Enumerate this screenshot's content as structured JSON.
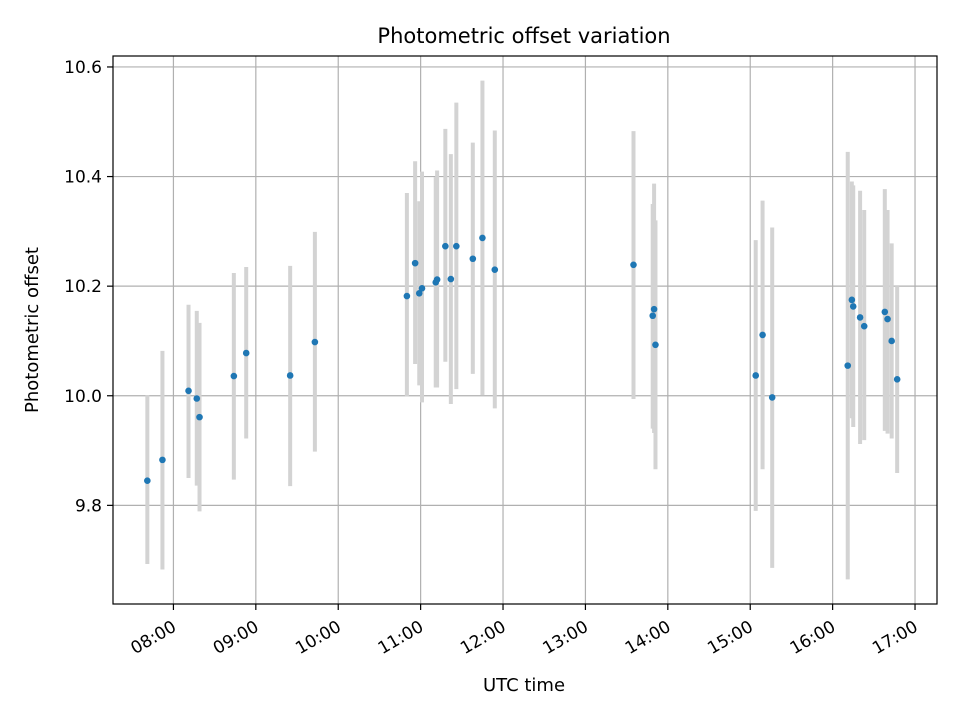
{
  "chart_data": {
    "type": "scatter",
    "title": "Photometric offset variation",
    "xlabel": "UTC time",
    "ylabel": "Photometric offset",
    "x_format": "HH:MM",
    "xlim": [
      "07:16",
      "17:16"
    ],
    "ylim": [
      9.62,
      10.62
    ],
    "x_ticks": [
      "08:00",
      "09:00",
      "10:00",
      "11:00",
      "12:00",
      "13:00",
      "14:00",
      "15:00",
      "16:00",
      "17:00"
    ],
    "y_ticks": [
      9.8,
      10.0,
      10.2,
      10.4,
      10.6
    ],
    "y_tick_labels": [
      "9.8",
      "10.0",
      "10.2",
      "10.4",
      "10.6"
    ],
    "grid": true,
    "legend": false,
    "x_tick_rotation": 30,
    "colors": {
      "point": "#1f77b4",
      "errorbar": "#d3d3d3",
      "grid": "#b0b0b0"
    },
    "series": [
      {
        "points": [
          {
            "x": "07:41",
            "y": 9.845,
            "ylow": 9.693,
            "yhigh": 10.001
          },
          {
            "x": "07:52",
            "y": 9.883,
            "ylow": 9.683,
            "yhigh": 10.082
          },
          {
            "x": "08:11",
            "y": 10.009,
            "ylow": 9.85,
            "yhigh": 10.166
          },
          {
            "x": "08:17",
            "y": 9.995,
            "ylow": 9.836,
            "yhigh": 10.155
          },
          {
            "x": "08:19",
            "y": 9.961,
            "ylow": 9.789,
            "yhigh": 10.133
          },
          {
            "x": "08:44",
            "y": 10.036,
            "ylow": 9.847,
            "yhigh": 10.224
          },
          {
            "x": "08:53",
            "y": 10.078,
            "ylow": 9.922,
            "yhigh": 10.235
          },
          {
            "x": "09:25",
            "y": 10.037,
            "ylow": 9.835,
            "yhigh": 10.237
          },
          {
            "x": "09:43",
            "y": 10.098,
            "ylow": 9.898,
            "yhigh": 10.299
          },
          {
            "x": "10:50",
            "y": 10.182,
            "ylow": 9.999,
            "yhigh": 10.37
          },
          {
            "x": "10:56",
            "y": 10.242,
            "ylow": 10.058,
            "yhigh": 10.428
          },
          {
            "x": "10:59",
            "y": 10.187,
            "ylow": 10.019,
            "yhigh": 10.355
          },
          {
            "x": "11:01",
            "y": 10.196,
            "ylow": 9.988,
            "yhigh": 10.409
          },
          {
            "x": "11:11",
            "y": 10.207,
            "ylow": 10.015,
            "yhigh": 10.399
          },
          {
            "x": "11:12",
            "y": 10.212,
            "ylow": 10.015,
            "yhigh": 10.411
          },
          {
            "x": "11:18",
            "y": 10.273,
            "ylow": 10.062,
            "yhigh": 10.487
          },
          {
            "x": "11:22",
            "y": 10.213,
            "ylow": 9.985,
            "yhigh": 10.441
          },
          {
            "x": "11:26",
            "y": 10.273,
            "ylow": 10.012,
            "yhigh": 10.535
          },
          {
            "x": "11:38",
            "y": 10.25,
            "ylow": 10.04,
            "yhigh": 10.462
          },
          {
            "x": "11:45",
            "y": 10.288,
            "ylow": 10.001,
            "yhigh": 10.575
          },
          {
            "x": "11:54",
            "y": 10.23,
            "ylow": 9.977,
            "yhigh": 10.484
          },
          {
            "x": "13:35",
            "y": 10.239,
            "ylow": 9.994,
            "yhigh": 10.483
          },
          {
            "x": "13:49",
            "y": 10.146,
            "ylow": 9.94,
            "yhigh": 10.35
          },
          {
            "x": "13:50",
            "y": 10.158,
            "ylow": 9.932,
            "yhigh": 10.387
          },
          {
            "x": "13:51",
            "y": 10.093,
            "ylow": 9.866,
            "yhigh": 10.32
          },
          {
            "x": "15:04",
            "y": 10.037,
            "ylow": 9.79,
            "yhigh": 10.284
          },
          {
            "x": "15:09",
            "y": 10.111,
            "ylow": 9.866,
            "yhigh": 10.356
          },
          {
            "x": "15:16",
            "y": 9.997,
            "ylow": 9.686,
            "yhigh": 10.307
          },
          {
            "x": "16:11",
            "y": 10.055,
            "ylow": 9.665,
            "yhigh": 10.445
          },
          {
            "x": "16:14",
            "y": 10.175,
            "ylow": 9.959,
            "yhigh": 10.391
          },
          {
            "x": "16:15",
            "y": 10.163,
            "ylow": 9.943,
            "yhigh": 10.384
          },
          {
            "x": "16:20",
            "y": 10.143,
            "ylow": 9.912,
            "yhigh": 10.374
          },
          {
            "x": "16:23",
            "y": 10.127,
            "ylow": 9.919,
            "yhigh": 10.339
          },
          {
            "x": "16:38",
            "y": 10.153,
            "ylow": 9.936,
            "yhigh": 10.377
          },
          {
            "x": "16:40",
            "y": 10.14,
            "ylow": 9.931,
            "yhigh": 10.339
          },
          {
            "x": "16:43",
            "y": 10.1,
            "ylow": 9.922,
            "yhigh": 10.278
          },
          {
            "x": "16:47",
            "y": 10.03,
            "ylow": 9.859,
            "yhigh": 10.2
          }
        ]
      }
    ]
  }
}
